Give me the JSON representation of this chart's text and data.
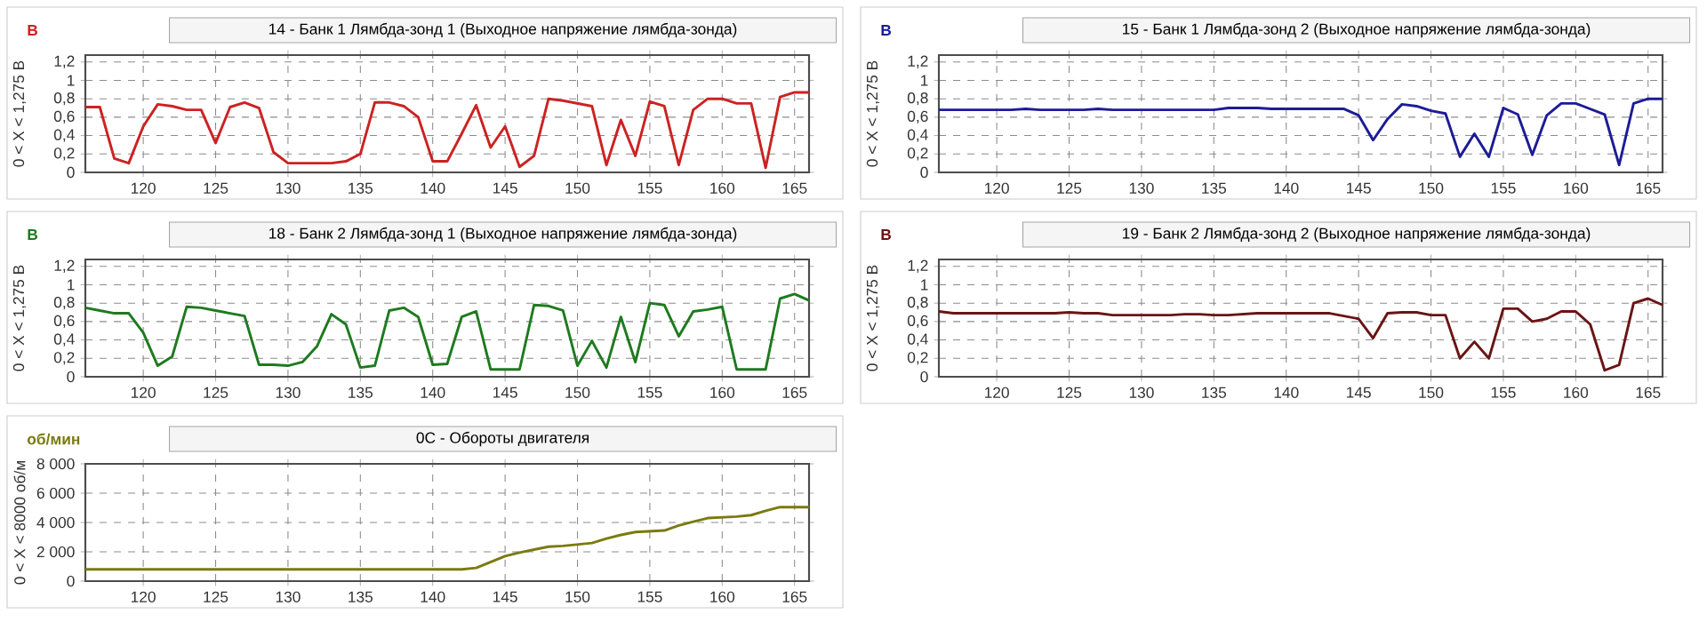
{
  "chart_data": [
    {
      "type": "line",
      "title": "14 - Банк 1 Лямбда-зонд 1 (Выходное напряжение лямбда-зонда)",
      "ylabel": "0  < X <  1,275  В",
      "annotations": [
        "В"
      ],
      "x": [
        116,
        117,
        118,
        119,
        120,
        121,
        122,
        123,
        124,
        125,
        126,
        127,
        128,
        129,
        130,
        131,
        132,
        133,
        134,
        135,
        136,
        137,
        138,
        139,
        140,
        141,
        142,
        143,
        144,
        145,
        146,
        147,
        148,
        149,
        150,
        151,
        152,
        153,
        154,
        155,
        156,
        157,
        158,
        159,
        160,
        161,
        162,
        163,
        164,
        165,
        166
      ],
      "xlim": [
        116,
        166
      ],
      "xticks": [
        120,
        125,
        130,
        135,
        140,
        145,
        150,
        155,
        160,
        165
      ],
      "ylim": [
        0,
        1.275
      ],
      "yticks": [
        0,
        {
          "value": 0.2,
          "label": "0,2"
        },
        {
          "value": 0.4,
          "label": "0,4"
        },
        {
          "value": 0.6,
          "label": "0,6"
        },
        {
          "value": 0.8,
          "label": "0,8"
        },
        1,
        {
          "value": 1.2,
          "label": "1,2"
        }
      ],
      "grid": true,
      "line_style": "solid",
      "series": [
        {
          "color": "#cc2222",
          "values": [
            0.71,
            0.71,
            0.15,
            0.1,
            0.5,
            0.74,
            0.72,
            0.68,
            0.68,
            0.32,
            0.71,
            0.76,
            0.7,
            0.22,
            0.1,
            0.1,
            0.1,
            0.1,
            0.12,
            0.2,
            0.76,
            0.76,
            0.72,
            0.6,
            0.12,
            0.12,
            0.42,
            0.73,
            0.27,
            0.5,
            0.06,
            0.18,
            0.8,
            0.78,
            0.75,
            0.72,
            0.08,
            0.57,
            0.18,
            0.77,
            0.72,
            0.08,
            0.68,
            0.8,
            0.8,
            0.75,
            0.75,
            0.05,
            0.82,
            0.87,
            0.87
          ]
        }
      ]
    },
    {
      "type": "line",
      "title": "15 - Банк 1 Лямбда-зонд 2 (Выходное напряжение лямбда-зонда)",
      "ylabel": "0  < X <  1,275  В",
      "annotations": [
        "В"
      ],
      "x": [
        116,
        117,
        118,
        119,
        120,
        121,
        122,
        123,
        124,
        125,
        126,
        127,
        128,
        129,
        130,
        131,
        132,
        133,
        134,
        135,
        136,
        137,
        138,
        139,
        140,
        141,
        142,
        143,
        144,
        145,
        146,
        147,
        148,
        149,
        150,
        151,
        152,
        153,
        154,
        155,
        156,
        157,
        158,
        159,
        160,
        161,
        162,
        163,
        164,
        165,
        166
      ],
      "xlim": [
        116,
        166
      ],
      "xticks": [
        120,
        125,
        130,
        135,
        140,
        145,
        150,
        155,
        160,
        165
      ],
      "ylim": [
        0,
        1.275
      ],
      "yticks": [
        0,
        {
          "value": 0.2,
          "label": "0,2"
        },
        {
          "value": 0.4,
          "label": "0,4"
        },
        {
          "value": 0.6,
          "label": "0,6"
        },
        {
          "value": 0.8,
          "label": "0,8"
        },
        1,
        {
          "value": 1.2,
          "label": "1,2"
        }
      ],
      "grid": true,
      "line_style": "solid",
      "series": [
        {
          "color": "#1c1c96",
          "values": [
            0.68,
            0.68,
            0.68,
            0.68,
            0.68,
            0.68,
            0.69,
            0.68,
            0.68,
            0.68,
            0.68,
            0.69,
            0.68,
            0.68,
            0.68,
            0.68,
            0.68,
            0.68,
            0.68,
            0.68,
            0.7,
            0.7,
            0.7,
            0.69,
            0.69,
            0.69,
            0.69,
            0.69,
            0.69,
            0.62,
            0.35,
            0.58,
            0.74,
            0.72,
            0.67,
            0.64,
            0.17,
            0.42,
            0.17,
            0.7,
            0.63,
            0.19,
            0.62,
            0.75,
            0.75,
            0.69,
            0.63,
            0.08,
            0.75,
            0.8,
            0.8
          ]
        }
      ]
    },
    {
      "type": "line",
      "title": "18 - Банк 2 Лямбда-зонд 1 (Выходное напряжение лямбда-зонда)",
      "ylabel": "0  < X <  1,275  В",
      "annotations": [
        "В"
      ],
      "x": [
        116,
        117,
        118,
        119,
        120,
        121,
        122,
        123,
        124,
        125,
        126,
        127,
        128,
        129,
        130,
        131,
        132,
        133,
        134,
        135,
        136,
        137,
        138,
        139,
        140,
        141,
        142,
        143,
        144,
        145,
        146,
        147,
        148,
        149,
        150,
        151,
        152,
        153,
        154,
        155,
        156,
        157,
        158,
        159,
        160,
        161,
        162,
        163,
        164,
        165,
        166
      ],
      "xlim": [
        116,
        166
      ],
      "xticks": [
        120,
        125,
        130,
        135,
        140,
        145,
        150,
        155,
        160,
        165
      ],
      "ylim": [
        0,
        1.275
      ],
      "yticks": [
        0,
        {
          "value": 0.2,
          "label": "0,2"
        },
        {
          "value": 0.4,
          "label": "0,4"
        },
        {
          "value": 0.6,
          "label": "0,6"
        },
        {
          "value": 0.8,
          "label": "0,8"
        },
        1,
        {
          "value": 1.2,
          "label": "1,2"
        }
      ],
      "grid": true,
      "line_style": "solid",
      "series": [
        {
          "color": "#1e7a1e",
          "values": [
            0.75,
            0.72,
            0.69,
            0.69,
            0.48,
            0.12,
            0.22,
            0.76,
            0.75,
            0.72,
            0.69,
            0.66,
            0.13,
            0.13,
            0.12,
            0.16,
            0.33,
            0.68,
            0.57,
            0.1,
            0.12,
            0.72,
            0.75,
            0.65,
            0.13,
            0.14,
            0.65,
            0.71,
            0.08,
            0.08,
            0.08,
            0.78,
            0.77,
            0.72,
            0.12,
            0.39,
            0.1,
            0.65,
            0.16,
            0.8,
            0.78,
            0.44,
            0.71,
            0.73,
            0.76,
            0.08,
            0.08,
            0.08,
            0.85,
            0.9,
            0.83
          ]
        }
      ]
    },
    {
      "type": "line",
      "title": "19 - Банк 2 Лямбда-зонд 2 (Выходное напряжение лямбда-зонда)",
      "ylabel": "0  < X <  1,275  В",
      "annotations": [
        "В"
      ],
      "x": [
        116,
        117,
        118,
        119,
        120,
        121,
        122,
        123,
        124,
        125,
        126,
        127,
        128,
        129,
        130,
        131,
        132,
        133,
        134,
        135,
        136,
        137,
        138,
        139,
        140,
        141,
        142,
        143,
        144,
        145,
        146,
        147,
        148,
        149,
        150,
        151,
        152,
        153,
        154,
        155,
        156,
        157,
        158,
        159,
        160,
        161,
        162,
        163,
        164,
        165,
        166
      ],
      "xlim": [
        116,
        166
      ],
      "xticks": [
        120,
        125,
        130,
        135,
        140,
        145,
        150,
        155,
        160,
        165
      ],
      "ylim": [
        0,
        1.275
      ],
      "yticks": [
        0,
        {
          "value": 0.2,
          "label": "0,2"
        },
        {
          "value": 0.4,
          "label": "0,4"
        },
        {
          "value": 0.6,
          "label": "0,6"
        },
        {
          "value": 0.8,
          "label": "0,8"
        },
        1,
        {
          "value": 1.2,
          "label": "1,2"
        }
      ],
      "grid": true,
      "line_style": "solid",
      "series": [
        {
          "color": "#6a1414",
          "values": [
            0.71,
            0.69,
            0.69,
            0.69,
            0.69,
            0.69,
            0.69,
            0.69,
            0.69,
            0.7,
            0.69,
            0.69,
            0.67,
            0.67,
            0.67,
            0.67,
            0.67,
            0.68,
            0.68,
            0.67,
            0.67,
            0.68,
            0.69,
            0.69,
            0.69,
            0.69,
            0.69,
            0.69,
            0.66,
            0.63,
            0.42,
            0.69,
            0.7,
            0.7,
            0.67,
            0.67,
            0.2,
            0.38,
            0.2,
            0.74,
            0.74,
            0.6,
            0.63,
            0.71,
            0.71,
            0.57,
            0.07,
            0.13,
            0.8,
            0.85,
            0.78
          ]
        }
      ]
    },
    {
      "type": "line",
      "title": "0C - Обороты двигателя",
      "ylabel": "0  < X <  8000  об/м",
      "annotations": [
        "об/мин"
      ],
      "x": [
        116,
        117,
        118,
        119,
        120,
        121,
        122,
        123,
        124,
        125,
        126,
        127,
        128,
        129,
        130,
        131,
        132,
        133,
        134,
        135,
        136,
        137,
        138,
        139,
        140,
        141,
        142,
        143,
        144,
        145,
        146,
        147,
        148,
        149,
        150,
        151,
        152,
        153,
        154,
        155,
        156,
        157,
        158,
        159,
        160,
        161,
        162,
        163,
        164,
        165,
        166
      ],
      "xlim": [
        116,
        166
      ],
      "xticks": [
        120,
        125,
        130,
        135,
        140,
        145,
        150,
        155,
        160,
        165
      ],
      "ylim": [
        0,
        8000
      ],
      "yticks": [
        0,
        {
          "value": 2000,
          "label": "2 000"
        },
        {
          "value": 4000,
          "label": "4 000"
        },
        {
          "value": 6000,
          "label": "6 000"
        },
        {
          "value": 8000,
          "label": "8 000"
        }
      ],
      "grid": true,
      "line_style": "solid",
      "series": [
        {
          "color": "#7a7a10",
          "values": [
            800,
            800,
            800,
            800,
            800,
            800,
            800,
            800,
            800,
            800,
            800,
            800,
            800,
            800,
            800,
            800,
            800,
            800,
            800,
            800,
            800,
            800,
            800,
            800,
            800,
            800,
            800,
            900,
            1300,
            1700,
            1950,
            2150,
            2350,
            2400,
            2500,
            2600,
            2900,
            3150,
            3350,
            3400,
            3450,
            3800,
            4050,
            4300,
            4350,
            4400,
            4500,
            4800,
            5050,
            5050,
            5050
          ]
        }
      ]
    }
  ]
}
